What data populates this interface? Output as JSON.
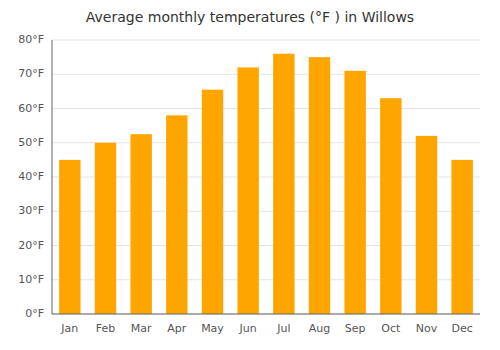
{
  "chart_data": {
    "type": "bar",
    "title": "Average monthly temperatures (°F ) in Willows",
    "categories": [
      "Jan",
      "Feb",
      "Mar",
      "Apr",
      "May",
      "Jun",
      "Jul",
      "Aug",
      "Sep",
      "Oct",
      "Nov",
      "Dec"
    ],
    "values": [
      45,
      50,
      52.5,
      58,
      65.5,
      72,
      76,
      75,
      71,
      63,
      52,
      45
    ],
    "color": "#FFA500",
    "ylim": [
      0,
      80
    ],
    "yticks": [
      {
        "value": 0,
        "label": "0°F"
      },
      {
        "value": 10,
        "label": "10°F"
      },
      {
        "value": 20,
        "label": "20°F"
      },
      {
        "value": 30,
        "label": "30°F"
      },
      {
        "value": 40,
        "label": "40°F"
      },
      {
        "value": 50,
        "label": "50°F"
      },
      {
        "value": 60,
        "label": "60°F"
      },
      {
        "value": 70,
        "label": "70°F"
      },
      {
        "value": 80,
        "label": "80°F"
      }
    ],
    "grid": true
  }
}
